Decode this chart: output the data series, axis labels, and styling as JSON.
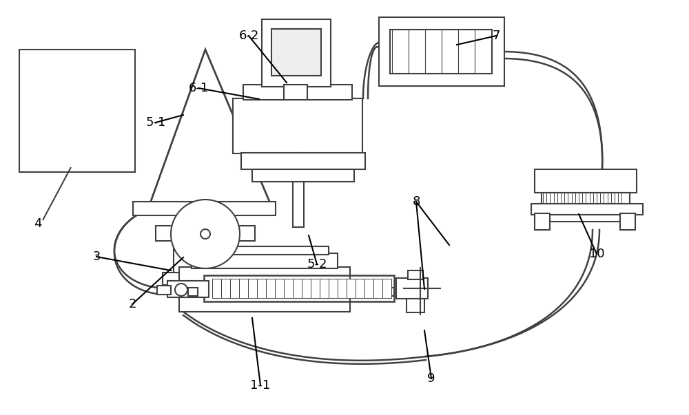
{
  "bg_color": "#ffffff",
  "line_color": "#404040",
  "lw": 1.5
}
